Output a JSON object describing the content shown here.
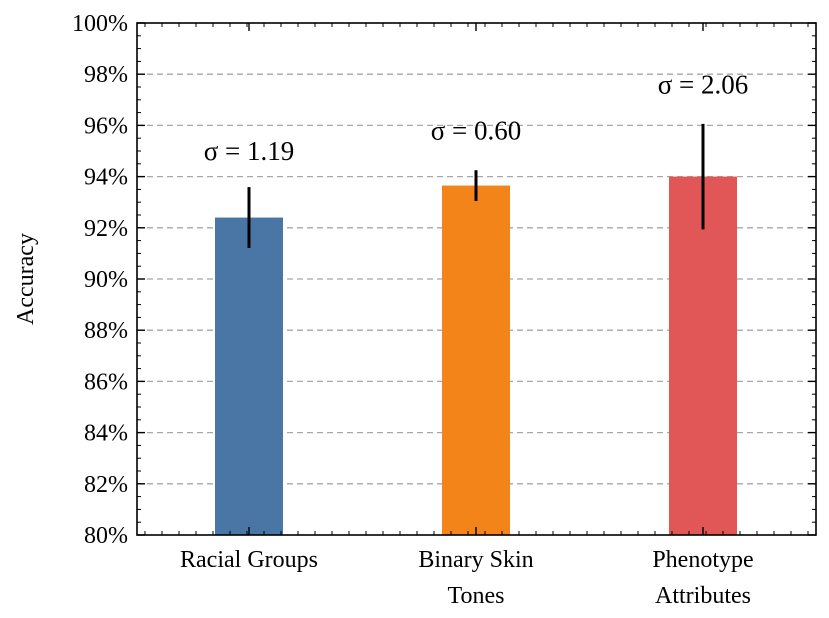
{
  "chart_data": {
    "type": "bar",
    "categories": [
      [
        "Racial Groups"
      ],
      [
        "Binary Skin",
        "Tones"
      ],
      [
        "Phenotype",
        "Attributes"
      ]
    ],
    "values": [
      92.4,
      93.65,
      94.0
    ],
    "errors": [
      1.19,
      0.6,
      2.06
    ],
    "annotations": [
      "σ = 1.19",
      "σ = 0.60",
      "σ = 2.06"
    ],
    "annotation_y": [
      95.0,
      95.8,
      97.6
    ],
    "colors": [
      "#4a76a5",
      "#f28419",
      "#e15757"
    ],
    "ylabel": "Accuracy",
    "ylim": [
      80,
      100
    ],
    "yticks": [
      80,
      82,
      84,
      86,
      88,
      90,
      92,
      94,
      96,
      98,
      100
    ],
    "ytick_labels": [
      "80%",
      "82%",
      "84%",
      "86%",
      "88%",
      "90%",
      "92%",
      "94%",
      "96%",
      "98%",
      "100%"
    ],
    "grid": true
  }
}
